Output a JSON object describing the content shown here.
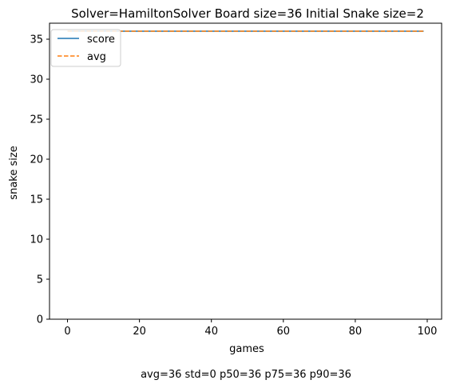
{
  "chart_data": {
    "type": "line",
    "title": "Solver=HamiltonSolver   Board size=36   Initial Snake size=2",
    "xlabel": "games",
    "ylabel": "snake size",
    "xlim": [
      -5,
      104
    ],
    "ylim": [
      0,
      37
    ],
    "xticks": [
      0,
      20,
      40,
      60,
      80,
      100
    ],
    "yticks": [
      0,
      5,
      10,
      15,
      20,
      25,
      30,
      35
    ],
    "x_range": [
      0,
      99
    ],
    "series": [
      {
        "name": "score",
        "color": "#1f77b4",
        "style": "solid",
        "value": 36
      },
      {
        "name": "avg",
        "color": "#ff7f0e",
        "style": "dashed",
        "value": 36
      }
    ],
    "legend_position": "top-left",
    "grid": false,
    "footer": "avg=36   std=0   p50=36   p75=36   p90=36"
  }
}
